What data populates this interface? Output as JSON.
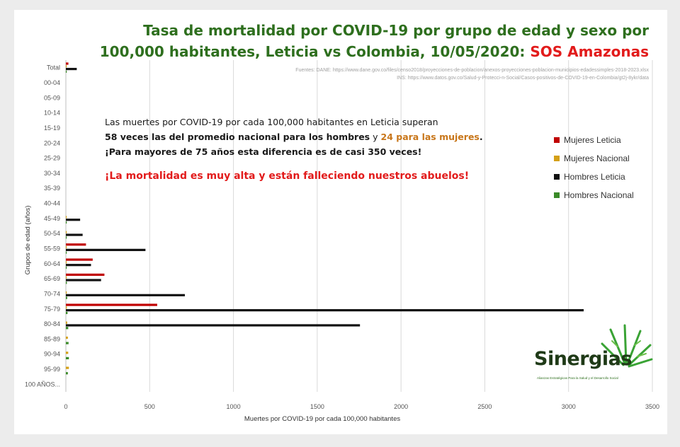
{
  "title": {
    "line1": "Tasa de mortalidad por COVID-19 por grupo de edad y sexo por",
    "line2": "100,000 habitantes, Leticia vs Colombia, 10/05/2020: ",
    "highlight": "SOS Amazonas"
  },
  "sources": {
    "line1": "Fuentes: DANE: https://www.dane.gov.co/files/censo2018/proyecciones-de-poblacion/anexos-proyecciones-poblacion-municipios-edadessimples-2018-2023.xlsx",
    "line2": "INS: https://www.datos.gov.co/Salud-y-Protecci-n-Social/Casos-positivos-de-COVID-19-en-Colombia/gt2j-8ykr/data"
  },
  "note": {
    "line1": "Las muertes por COVID-19 por cada 100,000 habitantes en Leticia superan",
    "line2a": "58 veces las del promedio nacional para los hombres",
    "line2b": " y ",
    "line2c": "24 para las mujeres",
    "line2d": ".",
    "line3": "¡Para mayores de 75 años esta diferencia es de casi 350 veces!",
    "line4": "¡La mortalidad es muy alta y están falleciendo nuestros abuelos!"
  },
  "logo": {
    "name": "Sinergias",
    "tagline": "Alianzas Estratégicas Para la Salud y el Desarrollo Social"
  },
  "colors": {
    "mujeres_leticia": "#c00000",
    "mujeres_nacional": "#d4a017",
    "hombres_leticia": "#111111",
    "hombres_nacional": "#3a8a28",
    "title_green": "#2e6f1e",
    "alert_red": "#e21b1b"
  },
  "chart_data": {
    "type": "bar",
    "orientation": "horizontal",
    "categories": [
      "Total",
      "00-04",
      "05-09",
      "10-14",
      "15-19",
      "20-24",
      "25-29",
      "30-34",
      "35-39",
      "40-44",
      "45-49",
      "50-54",
      "55-59",
      "60-64",
      "65-69",
      "70-74",
      "75-79",
      "80-84",
      "85-89",
      "90-94",
      "95-99",
      "100 AÑOS..."
    ],
    "series": [
      {
        "name": "Mujeres Leticia",
        "color": "#c00000",
        "values": [
          15,
          0,
          0,
          0,
          0,
          0,
          0,
          0,
          0,
          0,
          0,
          0,
          120,
          160,
          230,
          0,
          545,
          0,
          0,
          0,
          0,
          0
        ]
      },
      {
        "name": "Mujeres Nacional",
        "color": "#d4a017",
        "values": [
          0.5,
          0,
          0,
          0,
          0,
          0,
          0,
          0,
          0,
          0,
          0.5,
          0.5,
          1,
          2,
          3,
          4,
          6,
          8,
          12,
          14,
          18,
          0
        ]
      },
      {
        "name": "Hombres Leticia",
        "color": "#111111",
        "values": [
          65,
          0,
          0,
          0,
          0,
          0,
          0,
          0,
          0,
          0,
          85,
          100,
          475,
          150,
          210,
          710,
          3090,
          1755,
          0,
          0,
          0,
          0
        ]
      },
      {
        "name": "Hombres Nacional",
        "color": "#3a8a28",
        "values": [
          1,
          0,
          0,
          0,
          0,
          0,
          0,
          0,
          0,
          0,
          1,
          1,
          2,
          4,
          6,
          8,
          10,
          14,
          16,
          18,
          12,
          0
        ]
      }
    ],
    "xlabel": "Muertes por COVID-19 por cada 100,000 habitantes",
    "ylabel": "Grupos de edad (años)",
    "xlim": [
      0,
      3500
    ],
    "xticks": [
      0,
      500,
      1000,
      1500,
      2000,
      2500,
      3000,
      3500
    ],
    "grid": "vertical",
    "legend_position": "right"
  }
}
